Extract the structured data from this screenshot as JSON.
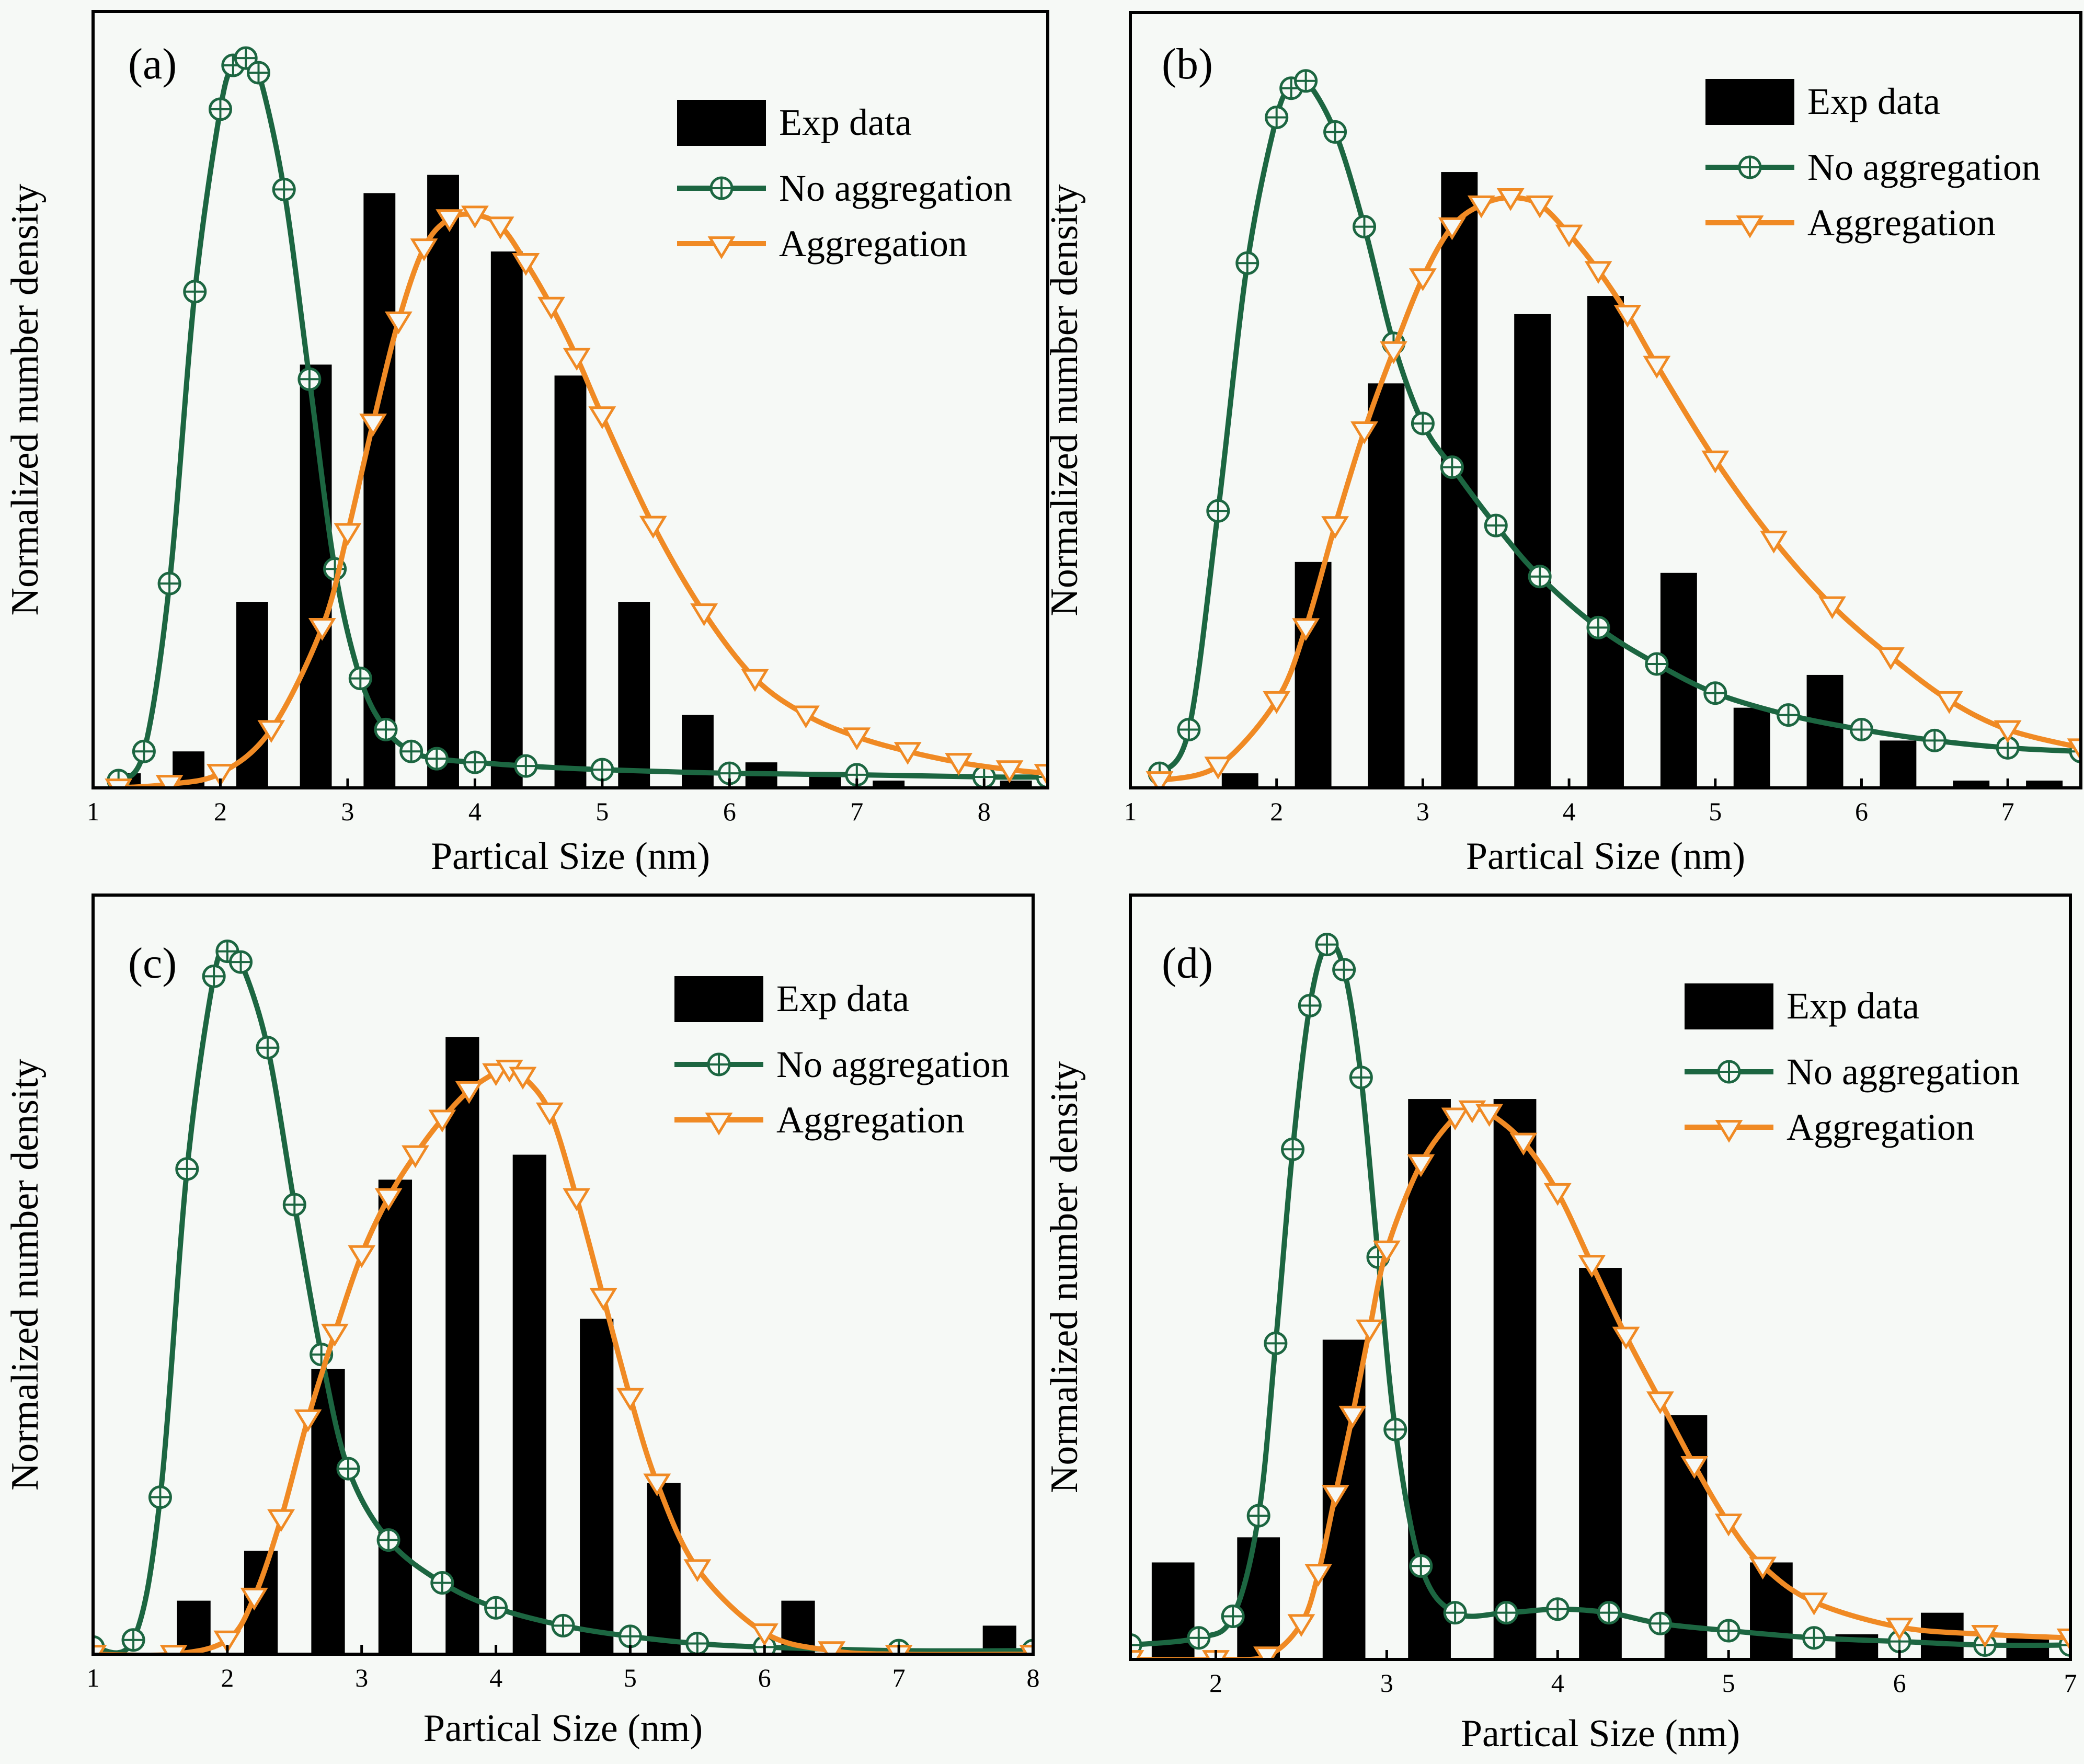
{
  "colors": {
    "background": "#f6f9f6",
    "exp_bar": "#000000",
    "no_aggregation": "#1c6641",
    "aggregation": "#f08a24"
  },
  "chart_data": [
    {
      "panel": "(a)",
      "type": "bar+line",
      "xlabel": "Partical Size (nm)",
      "ylabel": "Normalized number density",
      "xlim": [
        1,
        8.5
      ],
      "ylim": [
        0,
        1.0
      ],
      "xticks": [
        1,
        2,
        3,
        4,
        5,
        6,
        7,
        8
      ],
      "xtick_labels": [
        "1",
        "2",
        "3",
        "4",
        "5",
        "6",
        "7",
        "8"
      ],
      "legend": [
        "Exp data",
        "No aggregation",
        "Aggregation"
      ],
      "legend_position": "top-right",
      "bars": {
        "name": "Exp data",
        "x": [
          1.25,
          1.75,
          2.25,
          2.75,
          3.25,
          3.75,
          4.25,
          4.75,
          5.25,
          5.75,
          6.25,
          6.75,
          7.25,
          7.75,
          8.25
        ],
        "values": [
          0.02,
          0.05,
          0.255,
          0.58,
          0.815,
          0.84,
          0.735,
          0.565,
          0.255,
          0.1,
          0.035,
          0.02,
          0.01,
          0.0,
          0.01
        ]
      },
      "series": [
        {
          "name": "No aggregation",
          "x": [
            1.2,
            1.4,
            1.6,
            1.8,
            2.0,
            2.1,
            2.2,
            2.3,
            2.5,
            2.7,
            2.9,
            3.1,
            3.3,
            3.5,
            3.7,
            4.0,
            4.4,
            5.0,
            6.0,
            7.0,
            8.0,
            8.5
          ],
          "values": [
            0.01,
            0.05,
            0.28,
            0.68,
            0.93,
            0.99,
            1.0,
            0.98,
            0.82,
            0.56,
            0.3,
            0.15,
            0.08,
            0.05,
            0.04,
            0.035,
            0.03,
            0.025,
            0.02,
            0.018,
            0.015,
            0.015
          ]
        },
        {
          "name": "Aggregation",
          "x": [
            1.2,
            1.6,
            2.0,
            2.4,
            2.8,
            3.0,
            3.2,
            3.4,
            3.6,
            3.8,
            4.0,
            4.2,
            4.4,
            4.6,
            4.8,
            5.0,
            5.4,
            5.8,
            6.2,
            6.6,
            7.0,
            7.4,
            7.8,
            8.2,
            8.5
          ],
          "values": [
            0.0,
            0.005,
            0.02,
            0.08,
            0.22,
            0.35,
            0.5,
            0.64,
            0.74,
            0.78,
            0.785,
            0.77,
            0.72,
            0.66,
            0.59,
            0.51,
            0.36,
            0.24,
            0.15,
            0.1,
            0.07,
            0.05,
            0.035,
            0.025,
            0.02
          ]
        }
      ]
    },
    {
      "panel": "(b)",
      "type": "bar+line",
      "xlabel": "Partical Size (nm)",
      "ylabel": "Normalized number density",
      "xlim": [
        1,
        7.5
      ],
      "ylim": [
        0,
        1.0
      ],
      "xticks": [
        1,
        2,
        3,
        4,
        5,
        6,
        7
      ],
      "xtick_labels": [
        "1",
        "2",
        "3",
        "4",
        "5",
        "6",
        "7"
      ],
      "legend": [
        "Exp data",
        "No aggregation",
        "Aggregation"
      ],
      "legend_position": "top-right",
      "bars": {
        "name": "Exp data",
        "x": [
          1.75,
          2.25,
          2.75,
          3.25,
          3.75,
          4.25,
          4.75,
          5.25,
          5.75,
          6.25,
          6.75,
          7.25
        ],
        "values": [
          0.02,
          0.31,
          0.555,
          0.845,
          0.65,
          0.675,
          0.295,
          0.11,
          0.155,
          0.065,
          0.01,
          0.01
        ]
      },
      "series": [
        {
          "name": "No aggregation",
          "x": [
            1.2,
            1.4,
            1.6,
            1.8,
            2.0,
            2.1,
            2.2,
            2.4,
            2.6,
            2.8,
            3.0,
            3.2,
            3.5,
            3.8,
            4.2,
            4.6,
            5.0,
            5.5,
            6.0,
            6.5,
            7.0,
            7.5
          ],
          "values": [
            0.02,
            0.08,
            0.38,
            0.72,
            0.92,
            0.96,
            0.97,
            0.9,
            0.77,
            0.61,
            0.5,
            0.44,
            0.36,
            0.29,
            0.22,
            0.17,
            0.13,
            0.1,
            0.08,
            0.065,
            0.055,
            0.05
          ]
        },
        {
          "name": "Aggregation",
          "x": [
            1.2,
            1.6,
            2.0,
            2.2,
            2.4,
            2.6,
            2.8,
            3.0,
            3.2,
            3.4,
            3.6,
            3.8,
            4.0,
            4.2,
            4.4,
            4.6,
            5.0,
            5.4,
            5.8,
            6.2,
            6.6,
            7.0,
            7.5
          ],
          "values": [
            0.01,
            0.03,
            0.12,
            0.22,
            0.36,
            0.49,
            0.6,
            0.7,
            0.77,
            0.8,
            0.81,
            0.8,
            0.76,
            0.71,
            0.65,
            0.58,
            0.45,
            0.34,
            0.25,
            0.18,
            0.12,
            0.08,
            0.055
          ]
        }
      ]
    },
    {
      "panel": "(c)",
      "type": "bar+line",
      "xlabel": "Partical Size (nm)",
      "ylabel": "Normalized number density",
      "xlim": [
        1,
        8
      ],
      "ylim": [
        0,
        1.0
      ],
      "xticks": [
        1,
        2,
        3,
        4,
        5,
        6,
        7,
        8
      ],
      "xtick_labels": [
        "1",
        "2",
        "3",
        "4",
        "5",
        "6",
        "7",
        "8"
      ],
      "legend": [
        "Exp data",
        "No aggregation",
        "Aggregation"
      ],
      "legend_position": "top-right",
      "bars": {
        "name": "Exp data",
        "x": [
          1.75,
          2.25,
          2.75,
          3.25,
          3.75,
          4.25,
          4.75,
          5.25,
          5.75,
          6.25,
          6.75,
          7.25,
          7.75
        ],
        "values": [
          0.075,
          0.145,
          0.4,
          0.665,
          0.865,
          0.7,
          0.47,
          0.24,
          0.0,
          0.075,
          0.0,
          0.0,
          0.04
        ]
      },
      "series": [
        {
          "name": "No aggregation",
          "x": [
            1.0,
            1.3,
            1.5,
            1.7,
            1.9,
            2.0,
            2.1,
            2.3,
            2.5,
            2.7,
            2.9,
            3.2,
            3.6,
            4.0,
            4.5,
            5.0,
            5.5,
            6.0,
            7.0,
            8.0
          ],
          "values": [
            0.01,
            0.02,
            0.22,
            0.68,
            0.95,
            0.985,
            0.97,
            0.85,
            0.63,
            0.42,
            0.26,
            0.16,
            0.1,
            0.065,
            0.04,
            0.025,
            0.015,
            0.01,
            0.005,
            0.005
          ]
        },
        {
          "name": "Aggregation",
          "x": [
            1.0,
            1.6,
            2.0,
            2.2,
            2.4,
            2.6,
            2.8,
            3.0,
            3.2,
            3.4,
            3.6,
            3.8,
            4.0,
            4.1,
            4.2,
            4.4,
            4.6,
            4.8,
            5.0,
            5.2,
            5.5,
            6.0,
            6.5,
            7.0,
            8.0
          ],
          "values": [
            0.0,
            0.0,
            0.02,
            0.08,
            0.19,
            0.33,
            0.45,
            0.56,
            0.64,
            0.7,
            0.75,
            0.79,
            0.815,
            0.82,
            0.81,
            0.76,
            0.64,
            0.5,
            0.36,
            0.24,
            0.12,
            0.03,
            0.005,
            0.0,
            0.0
          ]
        }
      ]
    },
    {
      "panel": "(d)",
      "type": "bar+line",
      "xlabel": "Partical Size (nm)",
      "ylabel": "Normalized number density",
      "xlim": [
        1.5,
        7
      ],
      "ylim": [
        0,
        1.0
      ],
      "xticks": [
        2,
        3,
        4,
        5,
        6,
        7
      ],
      "xtick_labels": [
        "2",
        "3",
        "4",
        "5",
        "6",
        "7"
      ],
      "legend": [
        "Exp data",
        "No aggregation",
        "Aggregation"
      ],
      "legend_position": "top-right",
      "bars": {
        "name": "Exp data",
        "x": [
          1.75,
          2.25,
          2.75,
          3.25,
          3.75,
          4.25,
          4.75,
          5.25,
          5.75,
          6.25,
          6.75
        ],
        "values": [
          0.135,
          0.17,
          0.445,
          0.78,
          0.78,
          0.545,
          0.34,
          0.135,
          0.035,
          0.065,
          0.03
        ]
      },
      "series": [
        {
          "name": "No aggregation",
          "x": [
            1.5,
            1.9,
            2.1,
            2.25,
            2.35,
            2.45,
            2.55,
            2.65,
            2.75,
            2.85,
            2.95,
            3.05,
            3.2,
            3.4,
            3.7,
            4.0,
            4.3,
            4.6,
            5.0,
            5.5,
            6.0,
            6.5,
            7.0
          ],
          "values": [
            0.02,
            0.03,
            0.06,
            0.2,
            0.44,
            0.71,
            0.91,
            0.995,
            0.96,
            0.81,
            0.56,
            0.32,
            0.13,
            0.065,
            0.065,
            0.07,
            0.065,
            0.05,
            0.04,
            0.03,
            0.025,
            0.02,
            0.02
          ]
        },
        {
          "name": "Aggregation",
          "x": [
            1.5,
            2.0,
            2.3,
            2.5,
            2.6,
            2.7,
            2.8,
            2.9,
            3.0,
            3.2,
            3.4,
            3.5,
            3.6,
            3.8,
            4.0,
            4.2,
            4.4,
            4.6,
            4.8,
            5.0,
            5.2,
            5.5,
            6.0,
            6.5,
            7.0
          ],
          "values": [
            0.0,
            0.0,
            0.005,
            0.05,
            0.12,
            0.23,
            0.34,
            0.46,
            0.57,
            0.69,
            0.755,
            0.765,
            0.76,
            0.72,
            0.65,
            0.55,
            0.45,
            0.36,
            0.27,
            0.19,
            0.13,
            0.08,
            0.045,
            0.035,
            0.03
          ]
        }
      ]
    }
  ]
}
